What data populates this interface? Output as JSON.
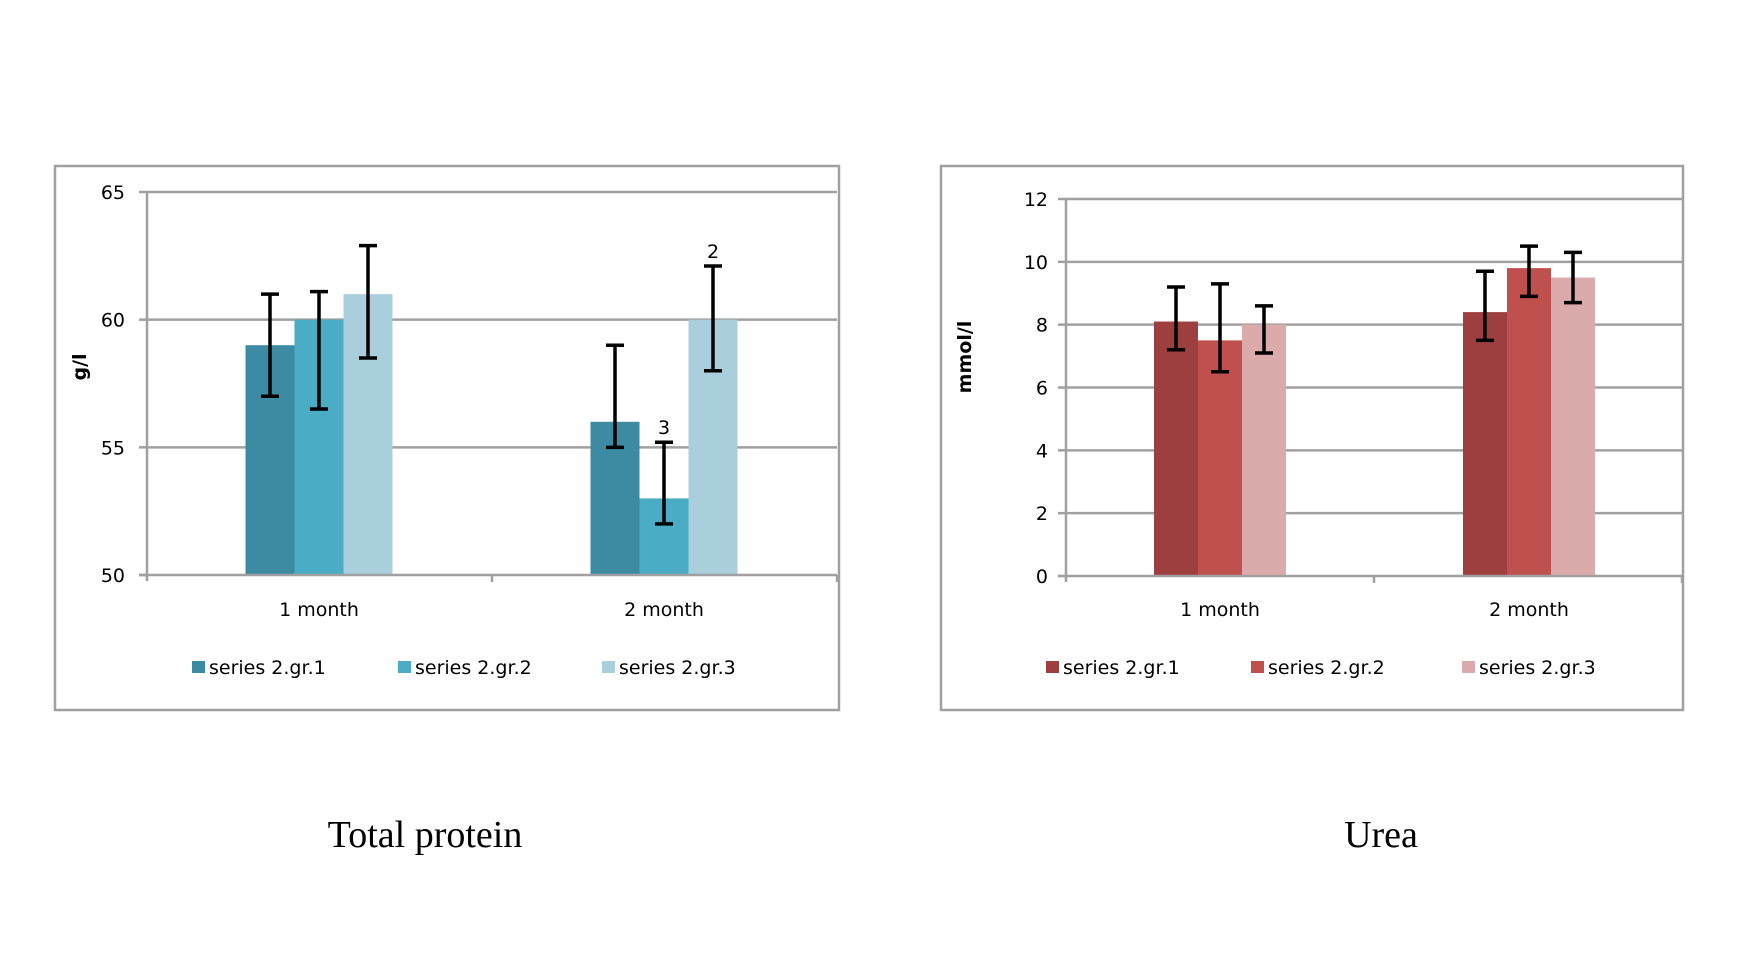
{
  "chart_data": [
    {
      "type": "bar",
      "title": "Total protein",
      "xlabel": "",
      "ylabel": "g/l",
      "ylim": [
        50,
        65
      ],
      "yticks": [
        50,
        55,
        60,
        65
      ],
      "grid": true,
      "legend_position": "bottom",
      "categories": [
        "1 month",
        "2 month"
      ],
      "series": [
        {
          "name": "series 2.gr.1",
          "color": "#3D8BA3",
          "values": [
            59,
            56
          ],
          "err_low": [
            57,
            55
          ],
          "err_high": [
            61,
            59
          ]
        },
        {
          "name": "series 2.gr.2",
          "color": "#4BACC6",
          "values": [
            60,
            53
          ],
          "err_low": [
            56.5,
            52
          ],
          "err_high": [
            61.1,
            55.2
          ]
        },
        {
          "name": "series 2.gr.3",
          "color": "#A9CFDC",
          "values": [
            61,
            60
          ],
          "err_low": [
            58.5,
            58
          ],
          "err_high": [
            62.9,
            62.1
          ]
        }
      ],
      "annotations": [
        {
          "category": "2 month",
          "series": "series 2.gr.2",
          "text": "3"
        },
        {
          "category": "2 month",
          "series": "series 2.gr.3",
          "text": "2"
        }
      ]
    },
    {
      "type": "bar",
      "title": "Urea",
      "xlabel": "",
      "ylabel": "mmol/l",
      "ylim": [
        0,
        12
      ],
      "yticks": [
        0,
        2,
        4,
        6,
        8,
        10,
        12
      ],
      "grid": true,
      "legend_position": "bottom",
      "categories": [
        "1 month",
        "2 month"
      ],
      "series": [
        {
          "name": "series 2.gr.1",
          "color": "#9D3F3E",
          "values": [
            8.1,
            8.4
          ],
          "err_low": [
            7.2,
            7.5
          ],
          "err_high": [
            9.2,
            9.7
          ]
        },
        {
          "name": "series 2.gr.2",
          "color": "#C0504D",
          "values": [
            7.5,
            9.8
          ],
          "err_low": [
            6.5,
            8.9
          ],
          "err_high": [
            9.3,
            10.5
          ]
        },
        {
          "name": "series 2.gr.3",
          "color": "#DAABAA",
          "values": [
            8.0,
            9.5
          ],
          "err_low": [
            7.1,
            8.7
          ],
          "err_high": [
            8.6,
            10.3
          ]
        }
      ],
      "annotations": []
    }
  ]
}
